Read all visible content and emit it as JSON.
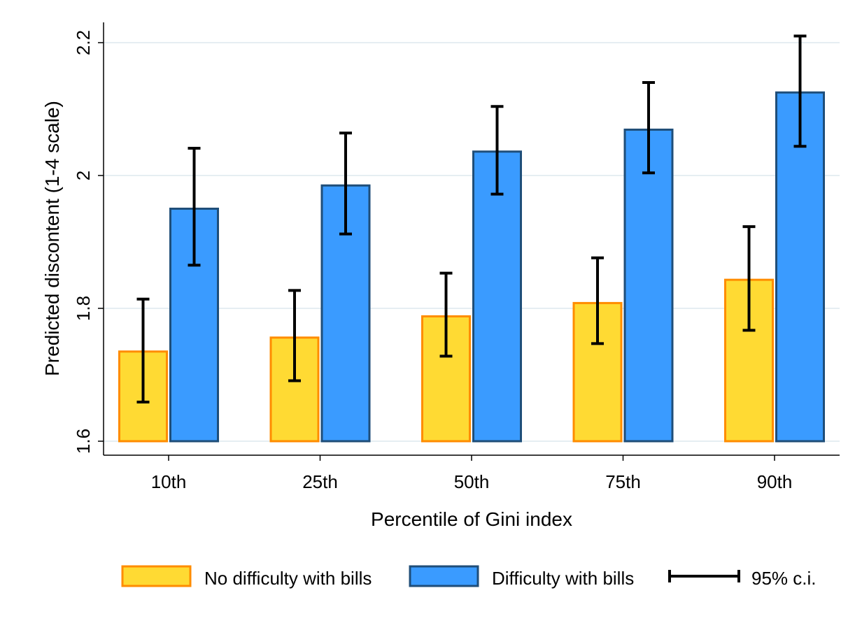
{
  "chart_data": {
    "type": "bar",
    "title": "",
    "xlabel": "Percentile of Gini index",
    "ylabel": "Predicted discontent (1-4 scale)",
    "ylim": [
      1.6,
      2.2
    ],
    "yticks": [
      1.6,
      1.8,
      2.0,
      2.2
    ],
    "ytick_labels": [
      "1.6",
      "1.8",
      "2",
      "2.2"
    ],
    "grid": true,
    "categories": [
      "10th",
      "25th",
      "50th",
      "75th",
      "90th"
    ],
    "series": [
      {
        "name": "No difficulty with bills",
        "fill": "#FFDA33",
        "stroke": "#FF8C00",
        "values": [
          1.735,
          1.756,
          1.788,
          1.808,
          1.843
        ],
        "ci_low": [
          1.659,
          1.691,
          1.728,
          1.747,
          1.767
        ],
        "ci_high": [
          1.814,
          1.827,
          1.853,
          1.876,
          1.923
        ]
      },
      {
        "name": "Difficulty with bills",
        "fill": "#3A9BFF",
        "stroke": "#1F4E79",
        "values": [
          1.95,
          1.985,
          2.036,
          2.069,
          2.125
        ],
        "ci_low": [
          1.865,
          1.912,
          1.972,
          2.004,
          2.044
        ],
        "ci_high": [
          2.041,
          2.064,
          2.104,
          2.14,
          2.21
        ]
      }
    ],
    "legend": {
      "placement": "bottom",
      "ci_label": "95% c.i."
    }
  }
}
